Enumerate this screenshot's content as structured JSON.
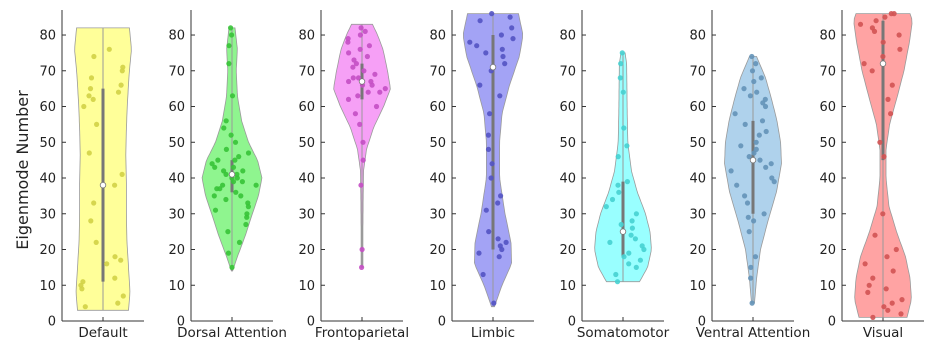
{
  "chart_data": {
    "type": "violin",
    "ylabel": "Eigenmode Number",
    "ylim": [
      0,
      87
    ],
    "yticks": [
      0,
      10,
      20,
      30,
      40,
      50,
      60,
      70,
      80
    ],
    "panels": [
      {
        "name": "Default",
        "color": "#ffff55",
        "range": [
          3,
          82
        ],
        "median": 38,
        "q1": 11,
        "q3": 65,
        "density": [
          [
            3,
            0.85
          ],
          [
            8,
            0.9
          ],
          [
            15,
            0.85
          ],
          [
            22,
            0.8
          ],
          [
            30,
            0.78
          ],
          [
            38,
            0.78
          ],
          [
            46,
            0.76
          ],
          [
            54,
            0.78
          ],
          [
            62,
            0.82
          ],
          [
            70,
            0.88
          ],
          [
            76,
            0.95
          ],
          [
            82,
            0.88
          ]
        ],
        "points": [
          4,
          5,
          7,
          9,
          10,
          11,
          12,
          16,
          17,
          18,
          22,
          28,
          33,
          38,
          41,
          47,
          55,
          60,
          62,
          63,
          64,
          65,
          66,
          68,
          70,
          71,
          74,
          76
        ]
      },
      {
        "name": "Dorsal Attention",
        "color": "#44ee44",
        "range": [
          14,
          82
        ],
        "median": 41,
        "q1": 36,
        "q3": 45,
        "density": [
          [
            14,
            0.02
          ],
          [
            18,
            0.18
          ],
          [
            24,
            0.45
          ],
          [
            30,
            0.68
          ],
          [
            35,
            0.88
          ],
          [
            40,
            1.0
          ],
          [
            45,
            0.85
          ],
          [
            50,
            0.55
          ],
          [
            56,
            0.32
          ],
          [
            63,
            0.18
          ],
          [
            70,
            0.14
          ],
          [
            76,
            0.18
          ],
          [
            82,
            0.1
          ]
        ],
        "points": [
          15,
          19,
          22,
          25,
          27,
          29,
          30,
          31,
          32,
          33,
          34,
          35,
          35,
          36,
          37,
          37,
          38,
          38,
          39,
          39,
          40,
          40,
          41,
          41,
          42,
          42,
          43,
          43,
          44,
          45,
          45,
          46,
          47,
          48,
          50,
          52,
          54,
          56,
          63,
          72,
          77,
          80,
          82
        ]
      },
      {
        "name": "Frontoparietal",
        "color": "#f060f0",
        "range": [
          15,
          83
        ],
        "median": 67,
        "q1": 62,
        "q3": 72,
        "density": [
          [
            15,
            0.03
          ],
          [
            25,
            0.03
          ],
          [
            35,
            0.04
          ],
          [
            42,
            0.05
          ],
          [
            48,
            0.15
          ],
          [
            54,
            0.38
          ],
          [
            60,
            0.72
          ],
          [
            65,
            0.95
          ],
          [
            70,
            0.85
          ],
          [
            76,
            0.7
          ],
          [
            80,
            0.52
          ],
          [
            83,
            0.35
          ]
        ],
        "points": [
          15,
          20,
          38,
          45,
          50,
          55,
          58,
          60,
          62,
          63,
          64,
          64,
          65,
          66,
          66,
          67,
          67,
          68,
          68,
          69,
          70,
          71,
          72,
          73,
          74,
          75,
          76,
          77,
          78,
          79,
          80,
          81,
          82
        ]
      },
      {
        "name": "Limbic",
        "color": "#6666ee",
        "range": [
          4,
          86
        ],
        "median": 71,
        "q1": 20,
        "q3": 80,
        "density": [
          [
            4,
            0.05
          ],
          [
            10,
            0.3
          ],
          [
            16,
            0.62
          ],
          [
            22,
            0.6
          ],
          [
            30,
            0.4
          ],
          [
            40,
            0.22
          ],
          [
            50,
            0.22
          ],
          [
            58,
            0.3
          ],
          [
            66,
            0.55
          ],
          [
            74,
            0.88
          ],
          [
            80,
            1.0
          ],
          [
            86,
            0.85
          ]
        ],
        "points": [
          5,
          13,
          18,
          19,
          20,
          21,
          22,
          23,
          25,
          31,
          33,
          35,
          40,
          44,
          48,
          52,
          58,
          63,
          66,
          70,
          72,
          74,
          75,
          76,
          77,
          78,
          79,
          80,
          82,
          84,
          85,
          86
        ]
      },
      {
        "name": "Somatomotor",
        "color": "#55ffff",
        "range": [
          11,
          75
        ],
        "median": 25,
        "q1": 18,
        "q3": 39,
        "density": [
          [
            11,
            0.55
          ],
          [
            15,
            0.82
          ],
          [
            20,
            0.95
          ],
          [
            25,
            0.9
          ],
          [
            30,
            0.75
          ],
          [
            36,
            0.48
          ],
          [
            42,
            0.28
          ],
          [
            50,
            0.16
          ],
          [
            58,
            0.14
          ],
          [
            66,
            0.13
          ],
          [
            72,
            0.12
          ],
          [
            75,
            0.07
          ]
        ],
        "points": [
          11,
          13,
          15,
          16,
          17,
          18,
          19,
          20,
          21,
          22,
          23,
          24,
          25,
          26,
          27,
          28,
          30,
          32,
          34,
          36,
          38,
          39,
          46,
          49,
          54,
          64,
          68,
          72,
          75
        ]
      },
      {
        "name": "Ventral Attention",
        "color": "#7ab4e0",
        "range": [
          5,
          74
        ],
        "median": 45,
        "q1": 30,
        "q3": 56,
        "density": [
          [
            5,
            0.05
          ],
          [
            12,
            0.12
          ],
          [
            20,
            0.25
          ],
          [
            28,
            0.5
          ],
          [
            36,
            0.78
          ],
          [
            44,
            0.95
          ],
          [
            50,
            0.92
          ],
          [
            56,
            0.8
          ],
          [
            62,
            0.62
          ],
          [
            68,
            0.42
          ],
          [
            74,
            0.12
          ]
        ],
        "points": [
          5,
          12,
          15,
          18,
          25,
          28,
          29,
          30,
          33,
          35,
          38,
          39,
          40,
          42,
          43,
          44,
          45,
          46,
          47,
          48,
          49,
          50,
          52,
          53,
          55,
          56,
          58,
          60,
          61,
          62,
          63,
          64,
          65,
          67,
          68,
          70,
          72,
          74
        ]
      },
      {
        "name": "Visual",
        "color": "#ff6666",
        "range": [
          1,
          86
        ],
        "median": 72,
        "q1": 45,
        "q3": 84,
        "density": [
          [
            1,
            0.8
          ],
          [
            6,
            0.95
          ],
          [
            12,
            0.9
          ],
          [
            18,
            0.75
          ],
          [
            25,
            0.45
          ],
          [
            32,
            0.2
          ],
          [
            40,
            0.1
          ],
          [
            48,
            0.1
          ],
          [
            55,
            0.22
          ],
          [
            62,
            0.45
          ],
          [
            70,
            0.7
          ],
          [
            78,
            0.88
          ],
          [
            84,
            0.98
          ],
          [
            86,
            0.9
          ]
        ],
        "points": [
          1,
          2,
          3,
          4,
          5,
          6,
          8,
          9,
          10,
          12,
          14,
          16,
          18,
          20,
          24,
          30,
          46,
          50,
          58,
          62,
          66,
          70,
          72,
          74,
          76,
          78,
          80,
          81,
          82,
          83,
          84,
          85,
          86,
          86
        ]
      }
    ]
  }
}
